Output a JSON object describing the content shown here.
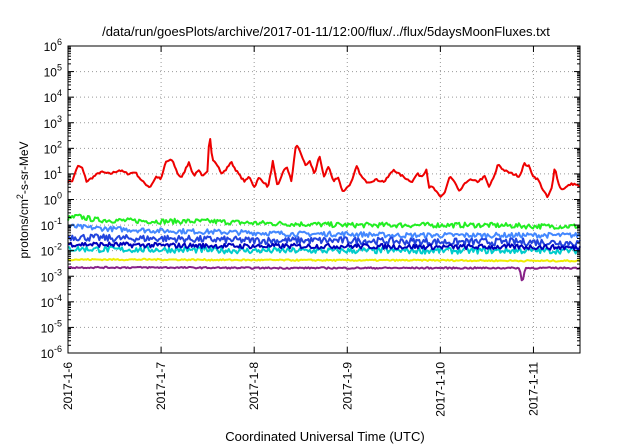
{
  "chart_data": {
    "type": "line",
    "title": "/data/run/goesPlots/archive/2017-01-11/12:00/flux/../flux/5daysMoonFluxes.txt",
    "xlabel": "Coordinated Universal Time (UTC)",
    "ylabel_parts": {
      "base": "protons/cm",
      "sup": "2",
      "tail": "-s-sr-MeV"
    },
    "x_ticks": [
      "2017-1-6",
      "2017-1-7",
      "2017-1-8",
      "2017-1-9",
      "2017-1-10",
      "2017-1-11"
    ],
    "x_range_days": [
      0,
      5.5
    ],
    "y_scale": "log",
    "y_exponents": [
      -6,
      -5,
      -4,
      -3,
      -2,
      -1,
      0,
      1,
      2,
      3,
      4,
      5,
      6
    ],
    "y_tick_base": "10",
    "grid": true,
    "series": [
      {
        "color": "#ee0000",
        "width": 2,
        "noise": 0.04,
        "points": [
          [
            0,
            5
          ],
          [
            0.05,
            5.5
          ],
          [
            0.1,
            20
          ],
          [
            0.15,
            18
          ],
          [
            0.2,
            5
          ],
          [
            0.28,
            8
          ],
          [
            0.35,
            12
          ],
          [
            0.45,
            10
          ],
          [
            0.55,
            14
          ],
          [
            0.65,
            10
          ],
          [
            0.72,
            12
          ],
          [
            0.8,
            5
          ],
          [
            0.88,
            3
          ],
          [
            0.95,
            8
          ],
          [
            1.0,
            6
          ],
          [
            1.05,
            30
          ],
          [
            1.12,
            35
          ],
          [
            1.18,
            10
          ],
          [
            1.22,
            7
          ],
          [
            1.3,
            30
          ],
          [
            1.35,
            8
          ],
          [
            1.4,
            15
          ],
          [
            1.45,
            8
          ],
          [
            1.5,
            12
          ],
          [
            1.52,
            400
          ],
          [
            1.55,
            40
          ],
          [
            1.6,
            25
          ],
          [
            1.65,
            10
          ],
          [
            1.7,
            15
          ],
          [
            1.75,
            30
          ],
          [
            1.8,
            15
          ],
          [
            1.85,
            8
          ],
          [
            1.9,
            5
          ],
          [
            1.95,
            8
          ],
          [
            2.0,
            3
          ],
          [
            2.05,
            7
          ],
          [
            2.1,
            5
          ],
          [
            2.15,
            3
          ],
          [
            2.2,
            30
          ],
          [
            2.25,
            3
          ],
          [
            2.3,
            10
          ],
          [
            2.35,
            20
          ],
          [
            2.4,
            5
          ],
          [
            2.45,
            150
          ],
          [
            2.5,
            70
          ],
          [
            2.55,
            20
          ],
          [
            2.6,
            30
          ],
          [
            2.65,
            10
          ],
          [
            2.7,
            50
          ],
          [
            2.75,
            8
          ],
          [
            2.8,
            20
          ],
          [
            2.85,
            5
          ],
          [
            2.9,
            8
          ],
          [
            2.95,
            2
          ],
          [
            3.0,
            3
          ],
          [
            3.05,
            5
          ],
          [
            3.1,
            20
          ],
          [
            3.15,
            8
          ],
          [
            3.2,
            5
          ],
          [
            3.25,
            5
          ],
          [
            3.3,
            6
          ],
          [
            3.4,
            5
          ],
          [
            3.5,
            15
          ],
          [
            3.55,
            10
          ],
          [
            3.6,
            8
          ],
          [
            3.65,
            6
          ],
          [
            3.7,
            5
          ],
          [
            3.75,
            10
          ],
          [
            3.8,
            8
          ],
          [
            3.85,
            15
          ],
          [
            3.88,
            3
          ],
          [
            3.92,
            3
          ],
          [
            4.0,
            1.2
          ],
          [
            4.05,
            2
          ],
          [
            4.1,
            8
          ],
          [
            4.15,
            5
          ],
          [
            4.2,
            2
          ],
          [
            4.3,
            6
          ],
          [
            4.4,
            5
          ],
          [
            4.48,
            8
          ],
          [
            4.52,
            3
          ],
          [
            4.58,
            8
          ],
          [
            4.62,
            25
          ],
          [
            4.67,
            15
          ],
          [
            4.72,
            12
          ],
          [
            4.78,
            10
          ],
          [
            4.85,
            8
          ],
          [
            4.9,
            25
          ],
          [
            4.95,
            20
          ],
          [
            5.0,
            8
          ],
          [
            5.05,
            6
          ],
          [
            5.1,
            2.5
          ],
          [
            5.15,
            1.2
          ],
          [
            5.18,
            2
          ],
          [
            5.2,
            3
          ],
          [
            5.23,
            20
          ],
          [
            5.27,
            4
          ],
          [
            5.3,
            2.5
          ],
          [
            5.35,
            3
          ],
          [
            5.4,
            4
          ],
          [
            5.45,
            4
          ],
          [
            5.5,
            3
          ]
        ]
      },
      {
        "color": "#22ee22",
        "width": 2,
        "noise": 0.1,
        "points": [
          [
            0,
            0.18
          ],
          [
            0.1,
            0.22
          ],
          [
            0.3,
            0.16
          ],
          [
            0.6,
            0.15
          ],
          [
            1.0,
            0.14
          ],
          [
            1.5,
            0.14
          ],
          [
            2.0,
            0.12
          ],
          [
            2.5,
            0.11
          ],
          [
            3.0,
            0.1
          ],
          [
            3.5,
            0.1
          ],
          [
            4.0,
            0.1
          ],
          [
            4.5,
            0.1
          ],
          [
            5.0,
            0.09
          ],
          [
            5.5,
            0.09
          ]
        ]
      },
      {
        "color": "#4488ff",
        "width": 2,
        "noise": 0.1,
        "points": [
          [
            0,
            0.09
          ],
          [
            0.2,
            0.08
          ],
          [
            0.5,
            0.07
          ],
          [
            1.0,
            0.06
          ],
          [
            1.5,
            0.055
          ],
          [
            2.0,
            0.05
          ],
          [
            2.5,
            0.045
          ],
          [
            3.0,
            0.045
          ],
          [
            3.5,
            0.04
          ],
          [
            4.0,
            0.04
          ],
          [
            4.5,
            0.04
          ],
          [
            5.0,
            0.04
          ],
          [
            5.5,
            0.04
          ]
        ]
      },
      {
        "color": "#2244dd",
        "width": 2,
        "noise": 0.14,
        "points": [
          [
            0,
            0.035
          ],
          [
            0.5,
            0.03
          ],
          [
            1.0,
            0.03
          ],
          [
            2.0,
            0.025
          ],
          [
            3.0,
            0.025
          ],
          [
            4.0,
            0.022
          ],
          [
            5.0,
            0.022
          ],
          [
            5.5,
            0.02
          ]
        ]
      },
      {
        "color": "#00cccc",
        "width": 2,
        "noise": 0.12,
        "points": [
          [
            0,
            0.012
          ],
          [
            0.5,
            0.011
          ],
          [
            1.0,
            0.011
          ],
          [
            2.0,
            0.01
          ],
          [
            3.0,
            0.01
          ],
          [
            4.0,
            0.01
          ],
          [
            5.0,
            0.01
          ],
          [
            5.5,
            0.01
          ]
        ]
      },
      {
        "color": "#0000bb",
        "width": 2,
        "noise": 0.1,
        "points": [
          [
            0,
            0.018
          ],
          [
            0.5,
            0.017
          ],
          [
            1.0,
            0.016
          ],
          [
            2.0,
            0.015
          ],
          [
            3.0,
            0.015
          ],
          [
            4.0,
            0.014
          ],
          [
            5.0,
            0.014
          ],
          [
            5.5,
            0.013
          ]
        ]
      },
      {
        "color": "#eeee00",
        "width": 2,
        "noise": 0.03,
        "points": [
          [
            0,
            0.0045
          ],
          [
            1.0,
            0.0045
          ],
          [
            2.0,
            0.0043
          ],
          [
            3.0,
            0.0042
          ],
          [
            4.0,
            0.0042
          ],
          [
            5.0,
            0.004
          ],
          [
            5.5,
            0.004
          ]
        ]
      },
      {
        "color": "#882288",
        "width": 2,
        "noise": 0.03,
        "points": [
          [
            0,
            0.0022
          ],
          [
            0.5,
            0.0022
          ],
          [
            1.0,
            0.0022
          ],
          [
            2.0,
            0.0021
          ],
          [
            3.0,
            0.0021
          ],
          [
            4.0,
            0.0021
          ],
          [
            4.85,
            0.0021
          ],
          [
            4.88,
            0.0005
          ],
          [
            4.91,
            0.0021
          ],
          [
            5.5,
            0.0021
          ]
        ]
      }
    ]
  }
}
